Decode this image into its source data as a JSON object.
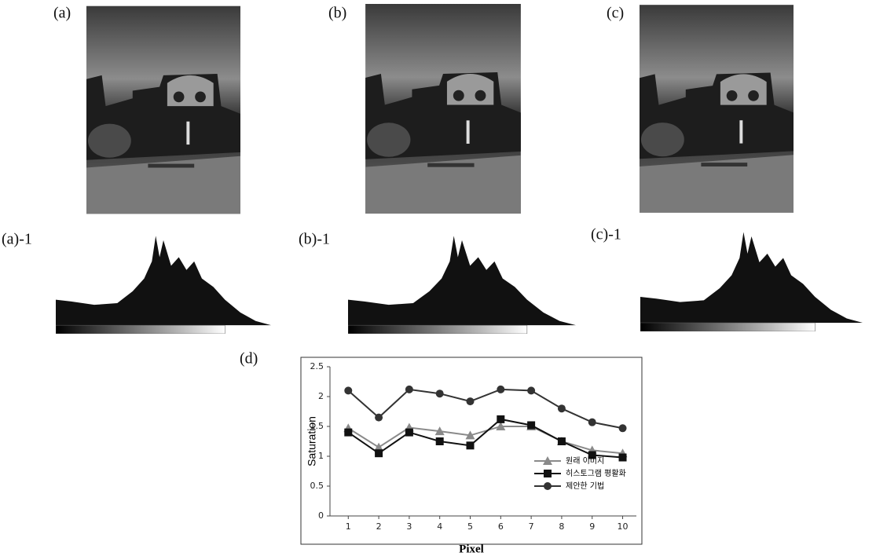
{
  "panels": [
    {
      "label": "(a)"
    },
    {
      "label": "(b)"
    },
    {
      "label": "(c)"
    },
    {
      "label": "(a)-1"
    },
    {
      "label": "(b)-1"
    },
    {
      "label": "(c)-1"
    },
    {
      "label": "(d)"
    }
  ],
  "chart_data": {
    "type": "line",
    "y_label": "Saturation",
    "x_label": "Pixel",
    "x": [
      1,
      2,
      3,
      4,
      5,
      6,
      7,
      8,
      9,
      10
    ],
    "xlim": [
      0.4,
      10.45
    ],
    "xticks": [
      1,
      2,
      3,
      4,
      5,
      6,
      7,
      8,
      9,
      10
    ],
    "ylim": [
      0,
      2.5
    ],
    "yticks": [
      0,
      0.5,
      1,
      1.5,
      2,
      2.5
    ],
    "legend": "lower right",
    "series": [
      {
        "name": "원래 이미지",
        "color": "#8a8a8a",
        "marker": "triangle",
        "values": [
          1.47,
          1.15,
          1.48,
          1.42,
          1.35,
          1.5,
          1.5,
          1.25,
          1.1,
          1.05
        ]
      },
      {
        "name": "히스토그램 평활화",
        "color": "#111111",
        "marker": "square",
        "values": [
          1.4,
          1.05,
          1.4,
          1.25,
          1.18,
          1.62,
          1.52,
          1.25,
          1.02,
          0.98
        ]
      },
      {
        "name": "제안한 기법",
        "color": "#333333",
        "marker": "circle",
        "values": [
          2.1,
          1.65,
          2.12,
          2.05,
          1.92,
          2.12,
          2.1,
          1.8,
          1.57,
          1.47
        ]
      }
    ]
  }
}
